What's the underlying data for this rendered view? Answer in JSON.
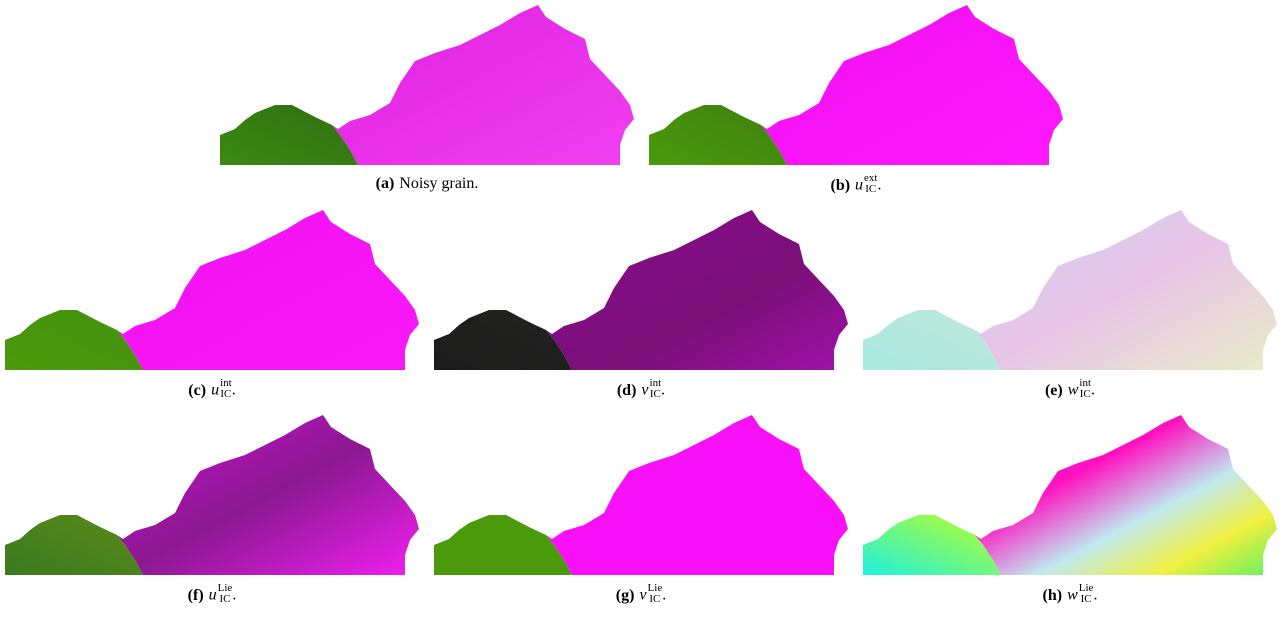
{
  "subfigures": [
    {
      "label": "(a)",
      "caption": "Noisy grain."
    },
    {
      "label": "(b)",
      "symbol": "u",
      "subscript": "IC",
      "superscript": "ext",
      "punctuation": "."
    },
    {
      "label": "(c)",
      "symbol": "u",
      "subscript": "IC",
      "superscript": "int",
      "punctuation": "."
    },
    {
      "label": "(d)",
      "symbol": "v",
      "subscript": "IC",
      "superscript": "int",
      "punctuation": "."
    },
    {
      "label": "(e)",
      "symbol": "w",
      "subscript": "IC",
      "superscript": "int",
      "punctuation": "."
    },
    {
      "label": "(f)",
      "symbol": "u",
      "subscript": "IC",
      "superscript": "Lie",
      "punctuation": "."
    },
    {
      "label": "(g)",
      "symbol": "v",
      "subscript": "IC",
      "superscript": "Lie",
      "punctuation": "."
    },
    {
      "label": "(h)",
      "symbol": "w",
      "subscript": "IC",
      "superscript": "Lie",
      "punctuation": "."
    }
  ]
}
